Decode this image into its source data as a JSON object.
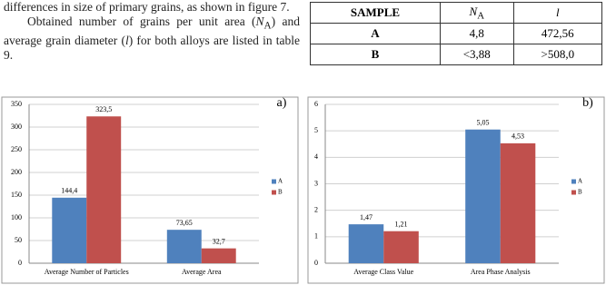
{
  "text": {
    "paragraphs": [
      "differences in size of primary grains, as shown in figure 7.",
      [
        "Obtained number of grains per unit area (",
        "N",
        "A",
        ") and average grain diameter (",
        "l",
        ") for both alloys are listed in table 9."
      ]
    ]
  },
  "table": {
    "header": {
      "sample": "SAMPLE",
      "n_symbol": "N",
      "n_subscript": "A",
      "l_symbol": "l"
    },
    "rows": [
      [
        "A",
        "4,8",
        "472,56"
      ],
      [
        "B",
        "<3,88",
        ">508,0"
      ]
    ]
  },
  "chart_data": [
    {
      "type": "bar",
      "panel": "a)",
      "categories": [
        "Average Number of Particles",
        "Average Area"
      ],
      "series": [
        {
          "name": "A",
          "color": "#4f81bd",
          "values": [
            144.4,
            73.65
          ],
          "value_labels": [
            "144,4",
            "73,65"
          ]
        },
        {
          "name": "B",
          "color": "#c0504d",
          "values": [
            323.5,
            32.7
          ],
          "value_labels": [
            "323,5",
            "32,7"
          ]
        }
      ],
      "ylim": [
        0,
        350
      ],
      "yticks": [
        0,
        50,
        100,
        150,
        200,
        250,
        300,
        350
      ],
      "grid": true
    },
    {
      "type": "bar",
      "panel": "b)",
      "categories": [
        "Average Class Value",
        "Area Phase Analysis"
      ],
      "series": [
        {
          "name": "A",
          "color": "#4f81bd",
          "values": [
            1.47,
            5.05
          ],
          "value_labels": [
            "1,47",
            "5,05"
          ]
        },
        {
          "name": "B",
          "color": "#c0504d",
          "values": [
            1.21,
            4.53
          ],
          "value_labels": [
            "1,21",
            "4,53"
          ]
        }
      ],
      "ylim": [
        0,
        6
      ],
      "yticks": [
        0,
        1,
        2,
        3,
        4,
        5,
        6
      ],
      "grid": true
    }
  ]
}
